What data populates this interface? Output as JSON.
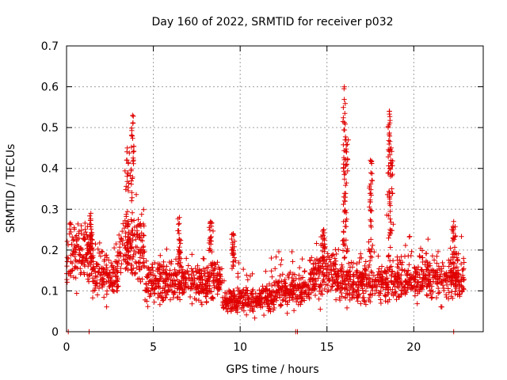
{
  "chart_data": {
    "type": "scatter",
    "title": "Day 160 of 2022, SRMTID for receiver p032",
    "xlabel": "GPS time / hours",
    "ylabel": "SRMTID / TECUs",
    "xlim": [
      0,
      24
    ],
    "ylim": [
      0,
      0.7
    ],
    "xticks": [
      0,
      5,
      10,
      15,
      20
    ],
    "xtick_labels": [
      "0",
      "5",
      "10",
      "15",
      "20"
    ],
    "yticks": [
      0,
      0.1,
      0.2,
      0.3,
      0.4,
      0.5,
      0.6,
      0.7
    ],
    "ytick_labels": [
      "0",
      "0.1",
      "0.2",
      "0.3",
      "0.4",
      "0.5",
      "0.6",
      "0.7"
    ],
    "grid": true,
    "marker": "+",
    "color": "#e00000",
    "x_range_of_data": [
      0,
      22.9
    ],
    "baseline_segments": [
      {
        "x_start": 0.0,
        "x_end": 1.5,
        "level": 0.19
      },
      {
        "x_start": 1.5,
        "x_end": 3.0,
        "level": 0.14
      },
      {
        "x_start": 3.0,
        "x_end": 4.5,
        "level": 0.2
      },
      {
        "x_start": 4.5,
        "x_end": 9.0,
        "level": 0.12
      },
      {
        "x_start": 9.0,
        "x_end": 12.0,
        "level": 0.08
      },
      {
        "x_start": 12.0,
        "x_end": 14.0,
        "level": 0.1
      },
      {
        "x_start": 14.0,
        "x_end": 15.5,
        "level": 0.14
      },
      {
        "x_start": 15.5,
        "x_end": 19.0,
        "level": 0.12
      },
      {
        "x_start": 19.0,
        "x_end": 22.9,
        "level": 0.13
      }
    ],
    "peaks": [
      {
        "x": 3.8,
        "y": 0.53
      },
      {
        "x": 3.5,
        "y": 0.45
      },
      {
        "x": 16.0,
        "y": 0.6
      },
      {
        "x": 16.1,
        "y": 0.47
      },
      {
        "x": 17.5,
        "y": 0.42
      },
      {
        "x": 18.6,
        "y": 0.54
      },
      {
        "x": 18.7,
        "y": 0.45
      },
      {
        "x": 1.4,
        "y": 0.29
      },
      {
        "x": 6.5,
        "y": 0.28
      },
      {
        "x": 8.3,
        "y": 0.27
      },
      {
        "x": 9.6,
        "y": 0.24
      },
      {
        "x": 14.8,
        "y": 0.25
      },
      {
        "x": 22.3,
        "y": 0.27
      }
    ],
    "zero_points_x": [
      0.1,
      1.3,
      13.2,
      13.3,
      22.3
    ]
  }
}
